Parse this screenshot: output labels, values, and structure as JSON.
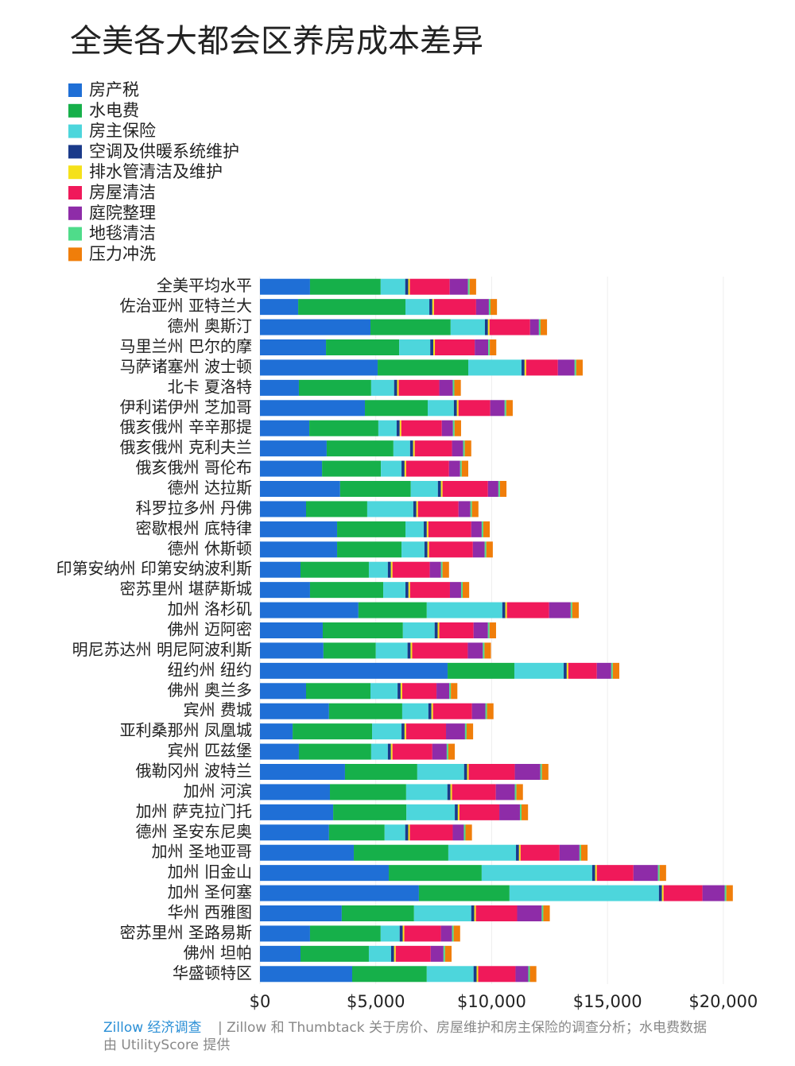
{
  "chart_data": {
    "type": "stacked-bar-horizontal",
    "title": "全美各大都会区养房成本差异",
    "categories": [
      "全美平均水平",
      "佐治亚州 亚特兰大",
      "德州 奥斯汀",
      "马里兰州 巴尔的摩",
      "马萨诸塞州 波士顿",
      "北卡 夏洛特",
      "伊利诺伊州 芝加哥",
      "俄亥俄州 辛辛那提",
      "俄亥俄州 克利夫兰",
      "俄亥俄州 哥伦布",
      "德州 达拉斯",
      "科罗拉多州 丹佛",
      "密歇根州 底特律",
      "德州 休斯顿",
      "印第安纳州 印第安纳波利斯",
      "密苏里州 堪萨斯城",
      "加州 洛杉矶",
      "佛州 迈阿密",
      "明尼苏达州 明尼阿波利斯",
      "纽约州 纽约",
      "佛州 奥兰多",
      "宾州 费城",
      "亚利桑那州 凤凰城",
      "宾州 匹兹堡",
      "俄勒冈州 波特兰",
      "加州 河滨",
      "加州 萨克拉门托",
      "德州 圣安东尼奥",
      "加州 圣地亚哥",
      "加州 旧金山",
      "加州 圣何塞",
      "华州 西雅图",
      "密苏里州 圣路易斯",
      "佛州 坦帕",
      "华盛顿特区"
    ],
    "series": [
      {
        "name": "房产税",
        "color": "#1f6fd6",
        "values": [
          2160,
          1650,
          4770,
          2850,
          5080,
          1680,
          4530,
          2130,
          2880,
          2680,
          3460,
          1990,
          3330,
          3330,
          1750,
          2160,
          4250,
          2710,
          2740,
          8100,
          1990,
          2980,
          1410,
          1680,
          3670,
          3020,
          3160,
          2980,
          4050,
          5560,
          6860,
          3530,
          2160,
          1750,
          3980
        ]
      },
      {
        "name": "水电费",
        "color": "#16b04a",
        "values": [
          3050,
          4630,
          3460,
          3160,
          3910,
          3120,
          2710,
          2980,
          2880,
          2540,
          3050,
          2640,
          2950,
          2780,
          2950,
          3160,
          2950,
          3460,
          2260,
          2880,
          2780,
          3160,
          3430,
          3120,
          3120,
          3290,
          3160,
          2400,
          4080,
          4010,
          3910,
          3120,
          3050,
          2950,
          3220
        ]
      },
      {
        "name": "房主保险",
        "color": "#4dd6dc",
        "values": [
          1060,
          1030,
          1480,
          1340,
          2300,
          990,
          1130,
          790,
          720,
          890,
          1170,
          1990,
          790,
          990,
          820,
          960,
          3260,
          1370,
          1370,
          2130,
          1170,
          1130,
          1270,
          720,
          2020,
          1780,
          2090,
          890,
          2920,
          4770,
          6450,
          2470,
          820,
          960,
          2020
        ]
      },
      {
        "name": "空调及供暖系统维护",
        "color": "#1a3a8a",
        "values": [
          130,
          130,
          130,
          130,
          130,
          130,
          130,
          130,
          130,
          130,
          130,
          130,
          130,
          130,
          130,
          130,
          130,
          130,
          130,
          130,
          130,
          130,
          130,
          130,
          130,
          130,
          130,
          130,
          130,
          130,
          130,
          130,
          130,
          130,
          130
        ]
      },
      {
        "name": "排水管清洁及维护",
        "color": "#f5e11a",
        "values": [
          70,
          70,
          70,
          70,
          70,
          70,
          70,
          70,
          70,
          70,
          70,
          70,
          70,
          70,
          70,
          70,
          70,
          70,
          70,
          70,
          70,
          70,
          70,
          70,
          70,
          70,
          70,
          70,
          70,
          70,
          70,
          70,
          70,
          70,
          70
        ]
      },
      {
        "name": "房屋清洁",
        "color": "#f0195a",
        "values": [
          1720,
          1820,
          1750,
          1720,
          1370,
          1750,
          1370,
          1750,
          1610,
          1850,
          1960,
          1750,
          1850,
          1890,
          1610,
          1720,
          1820,
          1480,
          2400,
          1230,
          1480,
          1680,
          1720,
          1720,
          1990,
          1890,
          1720,
          1850,
          1680,
          1580,
          1680,
          1780,
          1580,
          1510,
          1610
        ]
      },
      {
        "name": "庭院整理",
        "color": "#8e2ca8",
        "values": [
          790,
          550,
          380,
          580,
          720,
          580,
          620,
          480,
          480,
          480,
          450,
          510,
          450,
          510,
          480,
          480,
          930,
          620,
          650,
          620,
          550,
          580,
          820,
          620,
          1100,
          820,
          890,
          480,
          860,
          1060,
          960,
          1060,
          480,
          550,
          550
        ]
      },
      {
        "name": "地毯清洁",
        "color": "#4fdc8a",
        "values": [
          70,
          70,
          70,
          70,
          70,
          70,
          70,
          70,
          70,
          70,
          70,
          70,
          70,
          70,
          70,
          70,
          70,
          70,
          70,
          70,
          70,
          70,
          70,
          70,
          70,
          70,
          70,
          70,
          70,
          70,
          70,
          70,
          70,
          70,
          70
        ]
      },
      {
        "name": "压力冲洗",
        "color": "#f07e0a",
        "values": [
          280,
          280,
          280,
          280,
          280,
          280,
          280,
          280,
          280,
          280,
          280,
          280,
          280,
          280,
          280,
          280,
          280,
          280,
          280,
          280,
          280,
          280,
          280,
          280,
          280,
          280,
          280,
          280,
          280,
          280,
          280,
          280,
          280,
          280,
          280
        ]
      }
    ],
    "xlim": [
      0,
      21000
    ],
    "xticks": [
      {
        "value": 0,
        "label": "$0"
      },
      {
        "value": 5000,
        "label": "$5,000"
      },
      {
        "value": 10000,
        "label": "$10,000"
      },
      {
        "value": 15000,
        "label": "$15,000"
      },
      {
        "value": 20000,
        "label": "$20,000"
      }
    ],
    "grid": true,
    "source": {
      "org": "Zillow 经济调查",
      "text": "| Zillow 和 Thumbtack 关于房价、房屋维护和房主保险的调查分析；水电费数据",
      "text2": "由 UtilityScore 提供"
    }
  }
}
